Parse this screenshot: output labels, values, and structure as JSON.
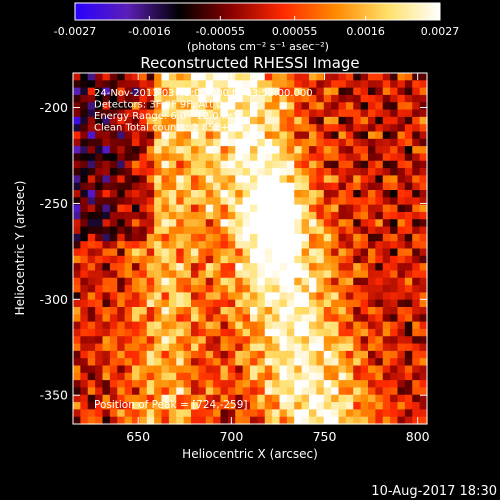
{
  "colorbar": {
    "ticks": [
      "-0.0027",
      "-0.0016",
      "-0.00055",
      "0.00055",
      "0.0016",
      "0.0027"
    ],
    "tick_values": [
      -0.0027,
      -0.0016,
      -0.00055,
      0.00055,
      0.0016,
      0.0027
    ],
    "range": [
      -0.0027,
      0.0027
    ],
    "unit_label": "(photons cm⁻² s⁻¹ asec⁻²)",
    "stops": [
      "#2a00ff",
      "#5b1fb8",
      "#000000",
      "#8a0000",
      "#ff2a00",
      "#ff8a00",
      "#ffe06a",
      "#ffffff"
    ]
  },
  "chart_data": {
    "type": "heatmap",
    "title": "Reconstructed RHESSI Image",
    "xlabel": "Heliocentric X (arcsec)",
    "ylabel": "Heliocentric Y (arcsec)",
    "xlim": [
      615,
      805
    ],
    "ylim": [
      -365,
      -182
    ],
    "xticks": [
      650,
      700,
      750,
      800
    ],
    "yticks": [
      -200,
      -250,
      -300,
      -350
    ],
    "xtick_labels": [
      "650",
      "700",
      "750",
      "800"
    ],
    "ytick_labels": [
      "-200",
      "-250",
      "-300",
      "-350"
    ],
    "annotation_lines": [
      "24-Nov-2013 03:42:00.000 to 03:52:00.000",
      "Detectors: 3F 8F 9F, Att 0",
      "Energy Range: 6.0 - 12.0 keV",
      "Clean      Total counts: 2.85E+04"
    ],
    "peak_label": "Position of Peak = [724,-259]",
    "peak": [
      724,
      -259
    ]
  },
  "footer": {
    "timestamp": "10-Aug-2017 18:30"
  }
}
